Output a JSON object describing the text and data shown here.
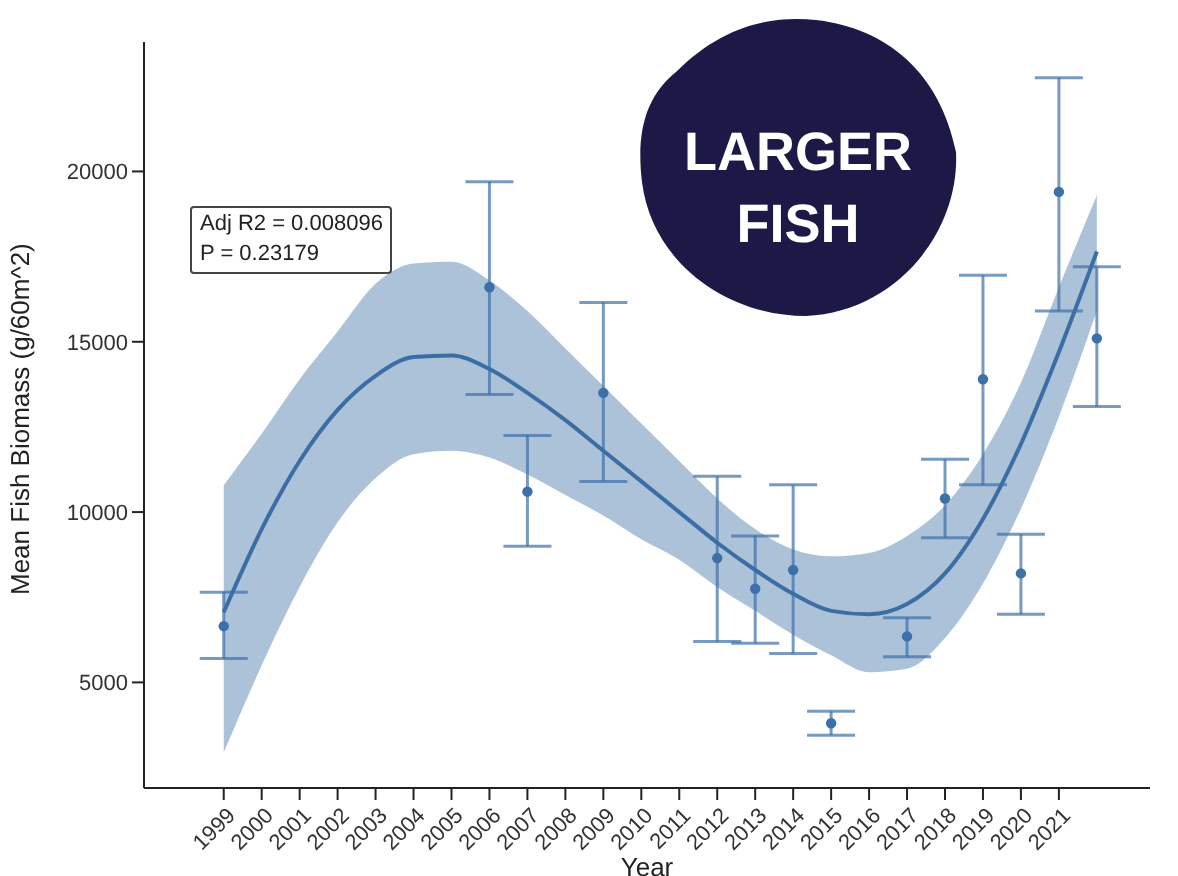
{
  "chart_data": {
    "type": "scatter",
    "xlabel": "Year",
    "ylabel": "Mean Fish Biomass (g/60m^2)",
    "annotations": [
      "Adj R2 =  0.008096",
      "P = 0.23179",
      "LARGER FISH"
    ],
    "xlim": [
      1996.9,
      2023.4
    ],
    "xticks": [
      1999,
      2000,
      2001,
      2002,
      2003,
      2004,
      2005,
      2006,
      2007,
      2008,
      2009,
      2010,
      2011,
      2012,
      2013,
      2014,
      2015,
      2016,
      2017,
      2018,
      2019,
      2020,
      2021
    ],
    "ylim": [
      1900,
      23800
    ],
    "yticks": [
      5000,
      10000,
      15000,
      20000
    ],
    "series": [
      {
        "type": "line",
        "color": "#3a6ea5",
        "x": [
          1999,
          2000,
          2001,
          2002,
          2003,
          2004,
          2005,
          2006,
          2007,
          2008,
          2009,
          2010,
          2011,
          2012,
          2013,
          2014,
          2015,
          2016,
          2017,
          2018,
          2019,
          2020,
          2021,
          2022
        ],
        "values": [
          7060,
          9500,
          11500,
          13000,
          14000,
          14550,
          14600,
          14200,
          13500,
          12700,
          11800,
          10900,
          10000,
          9100,
          8300,
          7600,
          7100,
          7000,
          7300,
          8200,
          9800,
          12000,
          14700,
          17650
        ],
        "lower": [
          2940,
          5500,
          7800,
          9700,
          11000,
          11700,
          11800,
          11600,
          11100,
          10500,
          9900,
          9200,
          8600,
          7800,
          7100,
          6400,
          5800,
          5300,
          5400,
          6300,
          7900,
          10100,
          12800,
          15900
        ],
        "upper": [
          10790,
          12300,
          13900,
          15300,
          16700,
          17300,
          17350,
          16800,
          15900,
          14800,
          13700,
          12600,
          11500,
          10400,
          9500,
          8900,
          8700,
          8800,
          9300,
          10200,
          11700,
          13800,
          16600,
          19300
        ]
      },
      {
        "color": "#3d6fa8",
        "marker": "circle",
        "x": [
          1999,
          2006,
          2007,
          2009,
          2012,
          2013,
          2014,
          2015,
          2017,
          2018,
          2019,
          2020,
          2021,
          2022
        ],
        "values": [
          6650,
          16600,
          10600,
          13500,
          8650,
          7750,
          8300,
          3800,
          6350,
          10400,
          13900,
          8200,
          19400,
          15100
        ],
        "errors": [
          [
            5700,
            7650
          ],
          [
            13450,
            19700
          ],
          [
            9000,
            12250
          ],
          [
            10900,
            16150
          ],
          [
            6200,
            11050
          ],
          [
            6150,
            9300
          ],
          [
            5850,
            10800
          ],
          [
            3450,
            4150
          ],
          [
            5750,
            6900
          ],
          [
            9250,
            11550
          ],
          [
            10800,
            16950
          ],
          [
            7000,
            9350
          ],
          [
            15900,
            22750
          ],
          [
            13100,
            17200
          ]
        ]
      }
    ]
  }
}
